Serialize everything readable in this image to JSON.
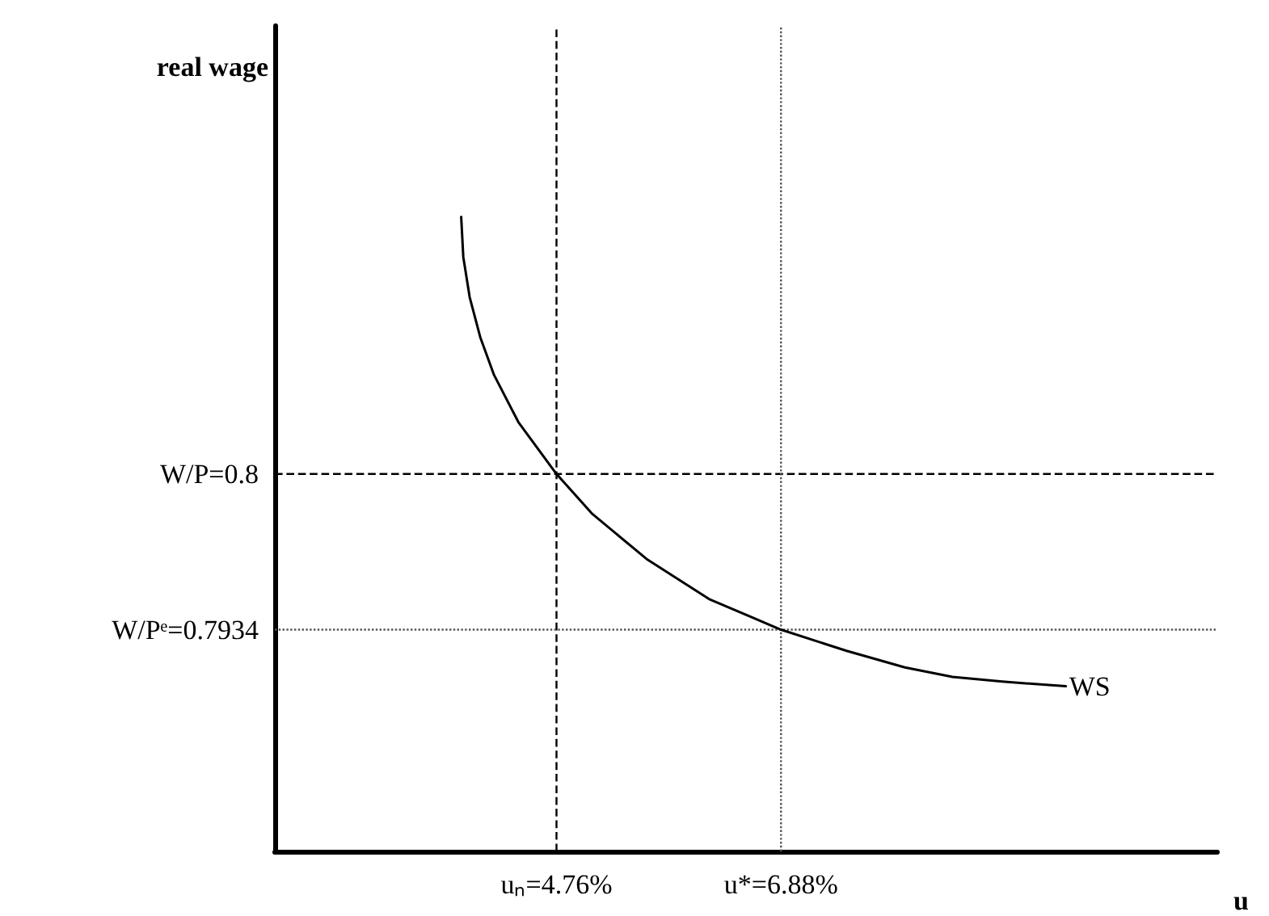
{
  "chart_data": {
    "type": "line",
    "xlabel": "u",
    "ylabel": "real wage",
    "xlim": [
      2.1,
      11
    ],
    "ylim": [
      0.784,
      0.819
    ],
    "xticks": [
      {
        "value": 4.76,
        "label": "uₙ=4.76%"
      },
      {
        "value": 6.88,
        "label": "u*=6.88%"
      }
    ],
    "yticks": [
      {
        "value": 0.7934,
        "label": "W/Pᵉ=0.7934"
      },
      {
        "value": 0.8,
        "label": "W/P=0.8"
      }
    ],
    "series": [
      {
        "name": "WS",
        "color": "#000000",
        "x": [
          3.86,
          3.88,
          3.94,
          4.04,
          4.17,
          4.4,
          4.76,
          5.1,
          5.61,
          6.2,
          6.88,
          7.5,
          8.05,
          8.5,
          8.97,
          9.57
        ],
        "values": [
          0.8109,
          0.8092,
          0.8075,
          0.8058,
          0.8042,
          0.8022,
          0.8,
          0.7983,
          0.7964,
          0.7947,
          0.7934,
          0.7925,
          0.7918,
          0.7914,
          0.7912,
          0.791
        ]
      }
    ],
    "ref_lines": [
      {
        "axis": "x",
        "value": 4.76,
        "line_style": "dashed",
        "color": "#000000"
      },
      {
        "axis": "y",
        "value": 0.8,
        "line_style": "dashed",
        "color": "#000000"
      },
      {
        "axis": "x",
        "value": 6.88,
        "line_style": "dotted",
        "color": "#555555"
      },
      {
        "axis": "y",
        "value": 0.7934,
        "line_style": "dotted",
        "color": "#555555"
      }
    ],
    "grid": false,
    "legend": false,
    "marker": "none",
    "line_style": "solid"
  }
}
